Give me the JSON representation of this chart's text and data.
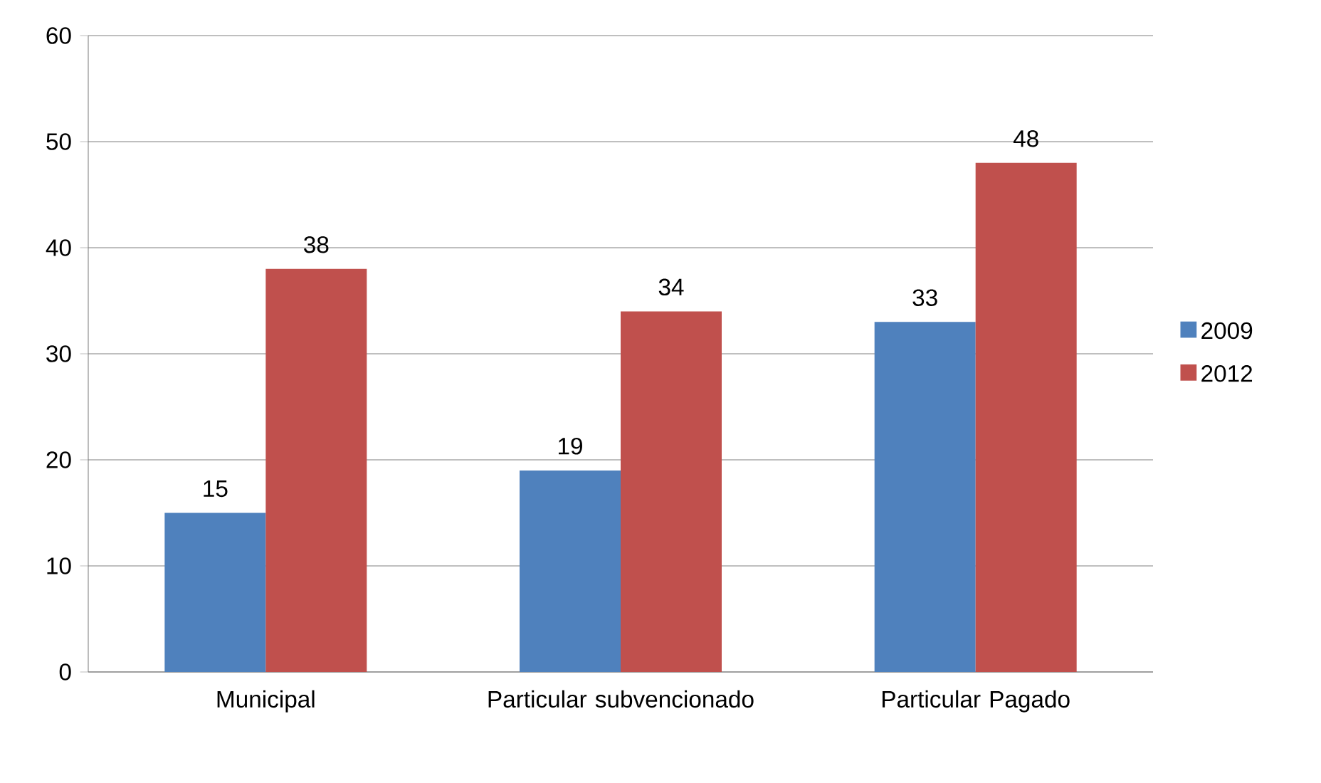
{
  "chart_data": {
    "type": "bar",
    "categories": [
      "Municipal",
      "Particular subvencionado",
      "Particular Pagado"
    ],
    "series": [
      {
        "name": "2009",
        "color": "#4f81bd",
        "values": [
          15,
          19,
          33
        ]
      },
      {
        "name": "2012",
        "color": "#c0504d",
        "values": [
          38,
          34,
          48
        ]
      }
    ],
    "ylim": [
      0,
      60
    ],
    "yticks": [
      0,
      10,
      20,
      30,
      40,
      50,
      60
    ],
    "grid": "y",
    "legend": "right",
    "data_labels": true
  }
}
